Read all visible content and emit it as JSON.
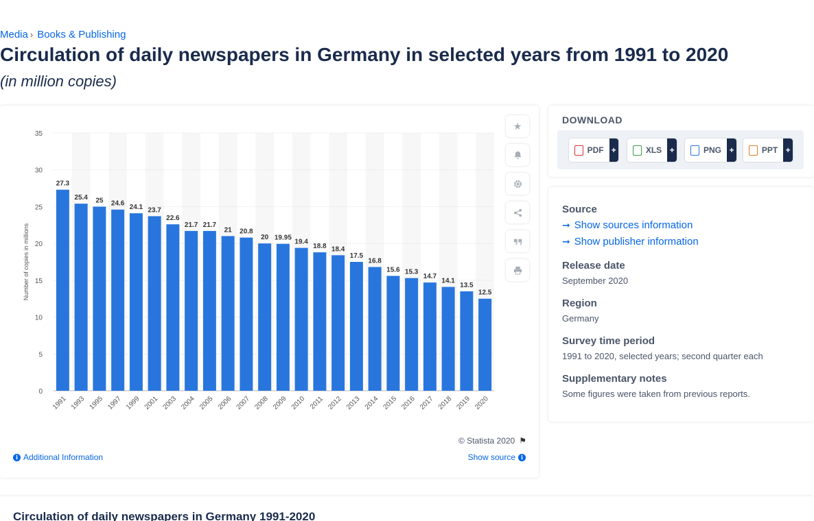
{
  "breadcrumb": {
    "items": [
      "Media",
      "Books & Publishing"
    ],
    "separator": "›"
  },
  "page": {
    "title": "Circulation of daily newspapers in Germany in selected years from 1991 to 2020",
    "subtitle": "(in million copies)"
  },
  "chart_card": {
    "copyright": "© Statista 2020",
    "additional_info": "Additional Information",
    "show_source": "Show source",
    "tools": [
      "star-icon",
      "bell-icon",
      "gear-icon",
      "share-icon",
      "quote-icon",
      "print-icon"
    ]
  },
  "chart_data": {
    "type": "bar",
    "categories": [
      "1991",
      "1993",
      "1995",
      "1997",
      "1999",
      "2001",
      "2003",
      "2004",
      "2005",
      "2006",
      "2007",
      "2008",
      "2009",
      "2010",
      "2011",
      "2012",
      "2013",
      "2014",
      "2015",
      "2016",
      "2017",
      "2018",
      "2019",
      "2020"
    ],
    "values": [
      27.3,
      25.4,
      25,
      24.6,
      24.1,
      23.7,
      22.6,
      21.7,
      21.7,
      21,
      20.8,
      20,
      19.95,
      19.4,
      18.8,
      18.4,
      17.5,
      16.8,
      15.6,
      15.3,
      14.7,
      14.1,
      13.5,
      12.5
    ],
    "ylabel": "Number of copies in millions",
    "ylim": [
      0,
      35
    ],
    "yticks": [
      0,
      5,
      10,
      15,
      20,
      25,
      30,
      35
    ],
    "grid": true,
    "bar_color": "#2876dd"
  },
  "download": {
    "title": "DOWNLOAD",
    "buttons": [
      {
        "label": "PDF",
        "icon": "pdf-icon",
        "color": "#d9302c"
      },
      {
        "label": "XLS",
        "icon": "xls-icon",
        "color": "#3a9b44"
      },
      {
        "label": "PNG",
        "icon": "png-icon",
        "color": "#2876dd"
      },
      {
        "label": "PPT",
        "icon": "ppt-icon",
        "color": "#e07b22"
      }
    ],
    "plus": "+"
  },
  "meta": {
    "source_label": "Source",
    "show_sources": "Show sources information",
    "show_publisher": "Show publisher information",
    "release_label": "Release date",
    "release_value": "September 2020",
    "region_label": "Region",
    "region_value": "Germany",
    "survey_label": "Survey time period",
    "survey_value": "1991 to 2020, selected years; second quarter each",
    "notes_label": "Supplementary notes",
    "notes_value": "Some figures were taken from previous reports."
  },
  "bottom": {
    "title": "Circulation of daily newspapers in Germany 1991-2020"
  }
}
